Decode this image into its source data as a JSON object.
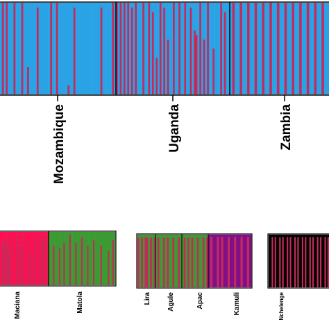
{
  "colors": {
    "blue": "#2aa3e6",
    "red": "#c42b5a",
    "pink": "#ff0f52",
    "green": "#3c9a32",
    "purple": "#800f8a",
    "black": "#000000"
  },
  "chart_data": [
    {
      "type": "stacked-bar",
      "panel": "top",
      "groups": [
        {
          "label": "Mozambique",
          "n": 60,
          "base": "blue",
          "other": "red",
          "other_fractions": {
            "1": 1.0,
            "3": 1.0,
            "7": 1.0,
            "11": 1.0,
            "14": 0.3,
            "19": 0.95,
            "26": 1.0,
            "29": 1.0,
            "35": 0.1,
            "38": 0.95,
            "52": 0.95,
            "58": 1.0
          }
        },
        {
          "label": "Uganda",
          "n": 60,
          "base": "blue",
          "other": "red",
          "other_fractions": {
            "0": 1.0,
            "2": 1.0,
            "4": 1.0,
            "6": 1.0,
            "8": 0.95,
            "10": 1.0,
            "14": 1.0,
            "17": 1.0,
            "19": 0.9,
            "21": 0.4,
            "23": 1.0,
            "25": 0.95,
            "27": 0.6,
            "30": 1.0,
            "33": 1.0,
            "36": 1.0,
            "39": 0.95,
            "41": 0.7,
            "42": 0.65,
            "44": 1.0,
            "46": 0.6,
            "48": 1.0,
            "51": 0.5,
            "55": 1.0,
            "57": 0.9
          }
        },
        {
          "label": "Zambia",
          "n": 40,
          "base": "blue",
          "other": "red",
          "other_fractions": {
            "1": 1.0,
            "4": 1.0,
            "7": 1.0,
            "10": 1.0,
            "13": 1.0,
            "16": 1.0,
            "19": 1.0,
            "22": 1.0,
            "25": 1.0,
            "28": 1.0,
            "31": 1.0,
            "34": 1.0,
            "37": 1.0
          }
        }
      ]
    },
    {
      "type": "stacked-bar",
      "panel": "bottom-left",
      "groups": [
        {
          "label": "Maciana",
          "n": 30,
          "base": "pink",
          "other": "red",
          "other_fractions": {
            "1": 0.8,
            "2": 0.85,
            "4": 0.9,
            "5": 0.7,
            "7": 0.9,
            "10": 0.95,
            "12": 0.75,
            "14": 0.95,
            "17": 0.85,
            "19": 0.6,
            "21": 0.9,
            "24": 0.95,
            "26": 0.85,
            "28": 0.95
          }
        },
        {
          "label": "Matola",
          "n": 45,
          "base": "green",
          "other": "red",
          "other_fractions": {
            "3": 0.75,
            "7": 0.7,
            "10": 0.8,
            "14": 0.95,
            "18": 0.8,
            "22": 0.9,
            "26": 0.75,
            "30": 0.85,
            "35": 0.75,
            "40": 0.65,
            "43": 0.85
          }
        }
      ]
    },
    {
      "type": "stacked-bar",
      "panel": "bottom-middle",
      "groups": [
        {
          "label": "Lira",
          "n": 10,
          "base": "green",
          "other": "red",
          "other_fractions": {
            "0": 0.95,
            "2": 0.95,
            "4": 0.95,
            "5": 0.95,
            "7": 0.95,
            "9": 0.95
          }
        },
        {
          "label": "Agule",
          "n": 14,
          "base": "green",
          "other": "red",
          "other_fractions": {
            "1": 0.95,
            "4": 0.95,
            "6": 0.95,
            "9": 0.95,
            "12": 0.95
          }
        },
        {
          "label": "Apac",
          "n": 14,
          "base": "green",
          "other": "red",
          "other_fractions": {
            "1": 0.95,
            "3": 0.95,
            "5": 0.95,
            "8": 0.95,
            "11": 0.95,
            "13": 0.95
          }
        },
        {
          "label": "Kamuli",
          "n": 20,
          "base": "purple",
          "other": "red",
          "other_fractions": {
            "1": 0.95,
            "4": 0.95,
            "6": 0.95,
            "9": 0.95,
            "12": 0.95,
            "15": 0.95,
            "18": 0.95
          }
        }
      ]
    },
    {
      "type": "stacked-bar",
      "panel": "bottom-right",
      "groups": [
        {
          "label": "Nchelenge",
          "n": 40,
          "base": "black",
          "other": "red",
          "other_fractions": {
            "2": 0.95,
            "4": 0.95,
            "7": 0.95,
            "9": 0.95,
            "12": 0.95,
            "14": 0.95,
            "17": 0.95,
            "19": 0.95,
            "22": 0.95,
            "24": 0.95,
            "27": 0.95,
            "29": 0.95,
            "32": 0.95,
            "34": 0.95,
            "37": 0.95,
            "39": 0.95
          }
        }
      ]
    }
  ]
}
